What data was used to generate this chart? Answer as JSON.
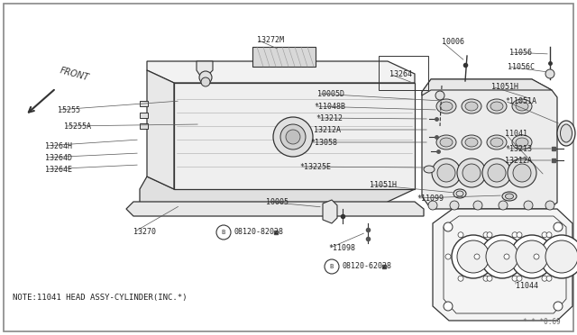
{
  "bg_color": "#ffffff",
  "border_color": "#aaaaaa",
  "line_color": "#333333",
  "note_text": "NOTE:11041 HEAD ASSY-CYLINDER(INC.*)",
  "page_ref": "* * *0:69",
  "front_label": "FRONT",
  "font_size_label": 6.0,
  "font_size_note": 6.5
}
